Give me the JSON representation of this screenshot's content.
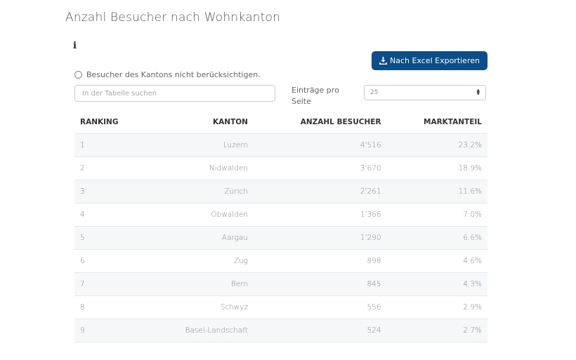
{
  "title": "Anzahl Besucher nach Wohnkanton",
  "info_icon": "i",
  "export_label": "Nach Excel Exportieren",
  "checkbox_label": "Besucher des Kantons nicht berücksichtigen.",
  "search_placeholder": "In der Tabelle suchen",
  "entries_label": "Einträge pro Seite",
  "entries_value": "25",
  "columns": [
    "RANKING",
    "KANTON",
    "ANZAHL BESUCHER",
    "MARKTANTEIL"
  ],
  "rows": [
    [
      "1",
      "Luzern",
      "4'516",
      "23.2%"
    ],
    [
      "2",
      "Nidwalden",
      "3'670",
      "18.9%"
    ],
    [
      "3",
      "Zürich",
      "2'261",
      "11.6%"
    ],
    [
      "4",
      "Obwalden",
      "1'366",
      "7.0%"
    ],
    [
      "5",
      "Aargau",
      "1'290",
      "6.6%"
    ],
    [
      "6",
      "Zug",
      "898",
      "4.6%"
    ],
    [
      "7",
      "Bern",
      "845",
      "4.3%"
    ],
    [
      "8",
      "Schwyz",
      "556",
      "2.9%"
    ],
    [
      "9",
      "Basel-Landschaft",
      "524",
      "2.7%"
    ]
  ],
  "colors": {
    "button": "#0a4f8a",
    "stripe": "#f5f7f9"
  }
}
